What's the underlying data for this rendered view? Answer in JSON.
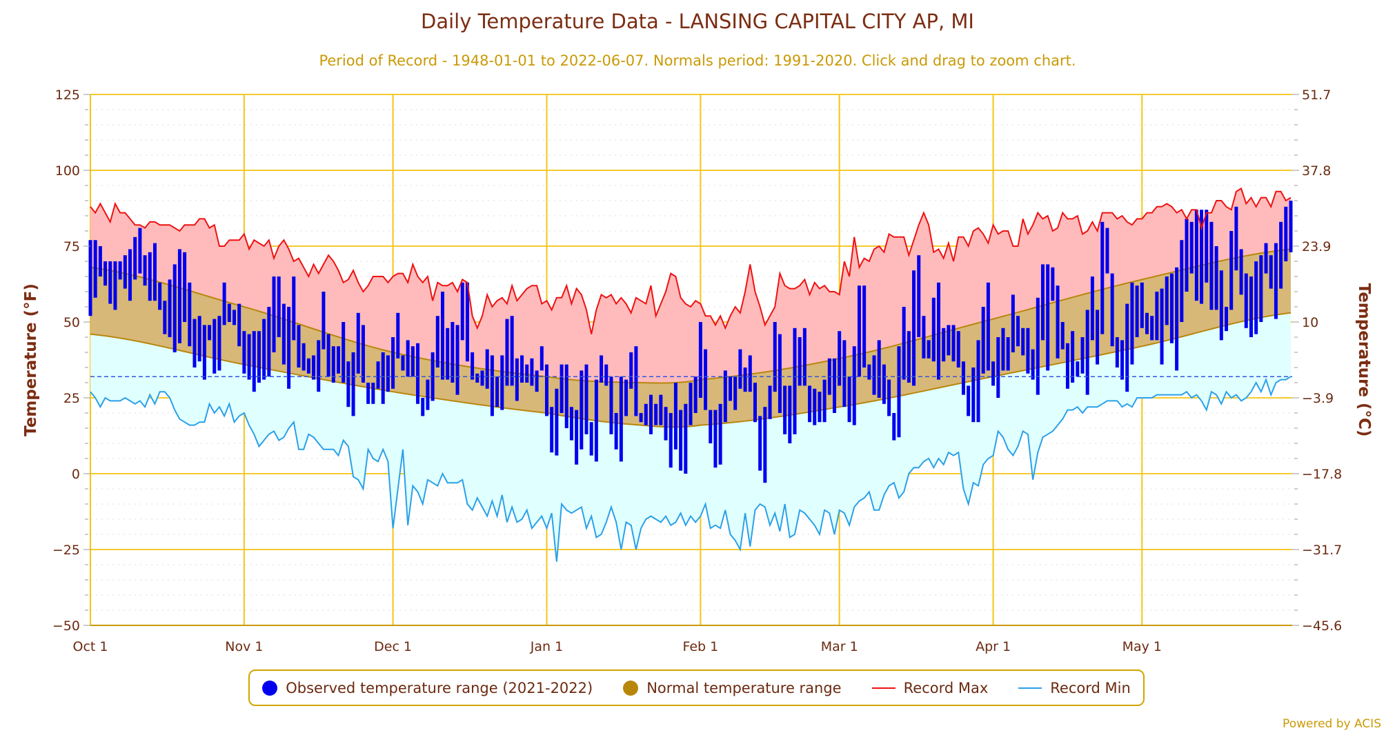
{
  "title": "Daily Temperature Data - LANSING CAPITAL CITY AP, MI",
  "subtitle": "Period of Record - 1948-01-01 to 2022-06-07. Normals period: 1991-2020. Click and drag to zoom chart.",
  "powered_by": "Powered by ACIS",
  "colors": {
    "observed": "#0000ee",
    "normal_fill": "#d8b878",
    "normal_edge": "#b8860b",
    "record_max": "#ee1111",
    "record_max_fill": "#ffbbbb",
    "record_min": "#2aa0e8",
    "record_min_fill": "#e0ffff",
    "freezing": "#3355dd",
    "grid": "#f5c518"
  },
  "legend": [
    {
      "label": "Observed temperature range (2021-2022)",
      "color": "#0000ee",
      "marker": "dot"
    },
    {
      "label": "Normal temperature range",
      "color": "#b8860b",
      "marker": "dot"
    },
    {
      "label": "Record Max",
      "color": "#ee1111",
      "marker": "line"
    },
    {
      "label": "Record Min",
      "color": "#2aa0e8",
      "marker": "line"
    }
  ],
  "chart_data": {
    "type": "range-bar+area+line",
    "ylabel_left": "Temperature (°F)",
    "ylabel_right": "Temperature (°C)",
    "ylim": [
      -50,
      125
    ],
    "y_ticks_left": [
      "125",
      "100",
      "75",
      "50",
      "25",
      "0",
      "−25",
      "−50"
    ],
    "y_ticks_right": [
      "51.7",
      "37.8",
      "23.9",
      "10",
      "−3.9",
      "−17.8",
      "−31.7",
      "−45.6"
    ],
    "x_ticks": [
      "Oct 1",
      "Nov 1",
      "Dec 1",
      "Jan 1",
      "Feb 1",
      "Mar 1",
      "Apr 1",
      "May 1"
    ],
    "freezing_line_f": 32,
    "grid": true,
    "legend_position": "bottom",
    "observed_high": [
      77,
      77,
      75,
      70,
      70,
      70,
      70,
      72,
      74,
      78,
      81,
      72,
      73,
      76,
      63,
      57,
      64,
      69,
      74,
      73,
      63,
      51,
      52,
      49,
      49,
      51,
      52,
      63,
      56,
      54,
      56,
      47,
      46,
      47,
      47,
      51,
      55,
      65,
      65,
      56,
      55,
      65,
      49,
      43,
      38,
      39,
      44,
      60,
      46,
      42,
      42,
      50,
      37,
      40,
      53,
      49,
      30,
      30,
      37,
      40,
      39,
      45,
      53,
      39,
      44,
      42,
      43,
      25,
      31,
      40,
      52,
      60,
      48,
      50,
      49,
      63,
      63,
      40,
      33,
      34,
      41,
      39,
      32,
      39,
      51,
      52,
      38,
      39,
      36,
      38,
      34,
      42,
      36,
      22,
      28,
      36,
      36,
      22,
      21,
      34,
      36,
      17,
      31,
      39,
      36,
      32,
      20,
      32,
      31,
      40,
      42,
      20,
      23,
      26,
      23,
      26,
      22,
      20,
      30,
      21,
      23,
      30,
      32,
      50,
      41,
      21,
      21,
      23,
      34,
      32,
      32,
      41,
      35,
      39,
      30,
      19,
      22,
      29,
      50,
      46,
      29,
      29,
      48,
      45,
      48,
      29,
      28,
      27,
      31,
      38,
      38,
      47,
      44,
      32,
      42,
      62,
      62,
      36,
      39,
      44,
      36,
      31,
      20,
      42,
      55,
      47,
      67,
      72,
      52,
      44,
      58,
      63,
      48,
      49,
      49,
      47,
      37,
      29,
      35,
      44,
      55,
      63,
      37,
      45,
      48,
      45,
      59,
      52,
      48,
      48,
      41,
      58,
      69,
      69,
      68,
      62,
      50,
      43,
      47,
      37,
      45,
      54,
      65,
      54,
      83,
      81,
      66,
      45,
      44,
      56,
      63,
      62,
      63,
      53,
      52,
      60,
      61,
      65,
      66,
      68,
      77,
      84,
      83,
      87,
      87,
      87,
      83,
      75,
      67,
      55,
      80,
      88,
      74,
      66,
      65,
      70,
      72,
      76,
      72,
      76,
      83,
      88,
      90
    ],
    "observed_low": [
      52,
      58,
      65,
      62,
      56,
      54,
      64,
      61,
      57,
      64,
      66,
      62,
      57,
      57,
      54,
      46,
      45,
      40,
      43,
      50,
      42,
      35,
      37,
      31,
      44,
      33,
      34,
      49,
      50,
      49,
      42,
      33,
      31,
      27,
      30,
      31,
      32,
      40,
      45,
      36,
      28,
      44,
      35,
      34,
      33,
      31,
      27,
      41,
      32,
      30,
      33,
      30,
      22,
      19,
      33,
      30,
      23,
      23,
      28,
      23,
      27,
      28,
      38,
      34,
      32,
      32,
      23,
      19,
      21,
      24,
      35,
      31,
      31,
      30,
      26,
      44,
      37,
      31,
      30,
      29,
      28,
      19,
      22,
      21,
      29,
      29,
      24,
      30,
      30,
      29,
      27,
      34,
      19,
      7,
      6,
      20,
      15,
      11,
      3,
      8,
      13,
      6,
      4,
      30,
      29,
      13,
      8,
      4,
      19,
      28,
      19,
      17,
      16,
      13,
      16,
      16,
      11,
      2,
      8,
      1,
      0,
      16,
      20,
      25,
      21,
      10,
      2,
      3,
      17,
      24,
      21,
      28,
      27,
      27,
      17,
      1,
      -3,
      18,
      27,
      20,
      13,
      10,
      13,
      29,
      29,
      17,
      16,
      17,
      17,
      26,
      20,
      29,
      22,
      17,
      16,
      32,
      35,
      31,
      26,
      25,
      23,
      19,
      11,
      12,
      31,
      30,
      29,
      45,
      38,
      38,
      37,
      31,
      37,
      39,
      37,
      35,
      26,
      19,
      17,
      17,
      33,
      34,
      29,
      25,
      34,
      34,
      40,
      42,
      39,
      33,
      31,
      26,
      44,
      34,
      57,
      38,
      41,
      28,
      30,
      32,
      33,
      26,
      44,
      36,
      46,
      66,
      42,
      35,
      31,
      27,
      36,
      45,
      48,
      46,
      44,
      44,
      36,
      49,
      43,
      34,
      50,
      60,
      66,
      57,
      56,
      63,
      54,
      54,
      44,
      47,
      54,
      67,
      59,
      48,
      45,
      46,
      50,
      66,
      61,
      51,
      61,
      70,
      73
    ],
    "record_max": [
      88,
      86,
      89,
      86,
      83,
      89,
      86,
      86,
      84,
      82,
      82,
      81,
      83,
      83,
      82,
      82,
      82,
      81,
      80,
      82,
      82,
      82,
      84,
      84,
      81,
      82,
      75,
      75,
      77,
      77,
      77,
      79,
      74,
      77,
      76,
      75,
      77,
      71,
      75,
      77,
      74,
      70,
      71,
      68,
      65,
      69,
      66,
      69,
      72,
      70,
      67,
      63,
      64,
      67,
      63,
      60,
      62,
      65,
      65,
      65,
      63,
      65,
      66,
      66,
      63,
      69,
      65,
      63,
      65,
      57,
      63,
      62,
      62,
      63,
      60,
      64,
      63,
      52,
      48,
      52,
      59,
      55,
      57,
      58,
      56,
      62,
      57,
      59,
      61,
      62,
      62,
      56,
      57,
      54,
      58,
      58,
      62,
      56,
      61,
      59,
      54,
      46,
      54,
      59,
      58,
      59,
      56,
      58,
      56,
      53,
      58,
      57,
      56,
      62,
      52,
      56,
      60,
      66,
      65,
      58,
      56,
      55,
      57,
      56,
      52,
      52,
      49,
      52,
      48,
      52,
      55,
      53,
      60,
      69,
      60,
      55,
      49,
      52,
      55,
      66,
      62,
      61,
      61,
      62,
      64,
      59,
      63,
      61,
      62,
      60,
      60,
      59,
      70,
      65,
      78,
      68,
      71,
      70,
      74,
      75,
      73,
      79,
      78,
      78,
      78,
      72,
      77,
      82,
      86,
      82,
      73,
      74,
      71,
      76,
      70,
      78,
      78,
      75,
      80,
      81,
      79,
      76,
      82,
      79,
      80,
      80,
      75,
      75,
      84,
      79,
      82,
      86,
      84,
      85,
      80,
      81,
      86,
      84,
      84,
      85,
      79,
      80,
      83,
      80,
      86,
      86,
      86,
      84,
      85,
      83,
      82,
      84,
      84,
      86,
      86,
      88,
      88,
      89,
      88,
      86,
      87,
      84,
      87,
      87,
      81,
      86,
      86,
      90,
      90,
      88,
      87,
      93,
      94,
      89,
      91,
      88,
      91,
      91,
      88,
      93,
      93,
      90,
      91
    ],
    "record_min": [
      27,
      25,
      22,
      25,
      24,
      24,
      24,
      25,
      24,
      23,
      24,
      22,
      26,
      23,
      27,
      27,
      25,
      21,
      18,
      17,
      16,
      16,
      17,
      17,
      23,
      20,
      22,
      19,
      23,
      17,
      19,
      20,
      16,
      13,
      9,
      11,
      13,
      14,
      11,
      12,
      15,
      17,
      8,
      8,
      13,
      12,
      10,
      8,
      8,
      8,
      6,
      11,
      9,
      -1,
      -2,
      -5,
      8,
      5,
      4,
      8,
      4,
      -18,
      -5,
      8,
      -17,
      -4,
      -6,
      -10,
      -2,
      -3,
      -4,
      0,
      -3,
      -3,
      -3,
      -2,
      -10,
      -12,
      -8,
      -11,
      -14,
      -9,
      -14,
      -7,
      -16,
      -11,
      -16,
      -15,
      -12,
      -18,
      -16,
      -14,
      -18,
      -13,
      -29,
      -10,
      -12,
      -13,
      -12,
      -11,
      -18,
      -14,
      -21,
      -20,
      -16,
      -11,
      -16,
      -25,
      -16,
      -17,
      -25,
      -18,
      -15,
      -14,
      -15,
      -16,
      -14,
      -17,
      -16,
      -13,
      -17,
      -14,
      -16,
      -14,
      -10,
      -18,
      -17,
      -18,
      -12,
      -20,
      -22,
      -25,
      -13,
      -24,
      -12,
      -10,
      -11,
      -17,
      -13,
      -19,
      -10,
      -21,
      -20,
      -12,
      -13,
      -15,
      -17,
      -20,
      -12,
      -13,
      -20,
      -12,
      -13,
      -17,
      -11,
      -9,
      -8,
      -6,
      -12,
      -12,
      -7,
      -4,
      -3,
      -8,
      -6,
      0,
      2,
      2,
      4,
      5,
      2,
      5,
      3,
      7,
      6,
      7,
      -5,
      -10,
      -3,
      -4,
      3,
      5,
      6,
      14,
      12,
      8,
      6,
      9,
      14,
      13,
      -2,
      7,
      12,
      13,
      14,
      16,
      18,
      21,
      21,
      22,
      20,
      22,
      22,
      22,
      23,
      24,
      24,
      24,
      22,
      23,
      22,
      25,
      25,
      25,
      25,
      26,
      26,
      26,
      26,
      26,
      26,
      27,
      25,
      26,
      24,
      21,
      27,
      26,
      23,
      27,
      25,
      26,
      24,
      25,
      27,
      30,
      27,
      31,
      26,
      30,
      31,
      31,
      32
    ],
    "normals": {
      "dates": [
        "Oct 1",
        "Nov 1",
        "Dec 1",
        "Jan 1",
        "Jan 20",
        "Feb 1",
        "Mar 1",
        "Apr 1",
        "May 1",
        "May 31"
      ],
      "high": [
        68,
        55,
        40,
        32,
        30,
        31,
        38,
        51,
        64,
        74
      ],
      "low": [
        46,
        36,
        27,
        20,
        16,
        16,
        22,
        32,
        42,
        53
      ]
    }
  }
}
